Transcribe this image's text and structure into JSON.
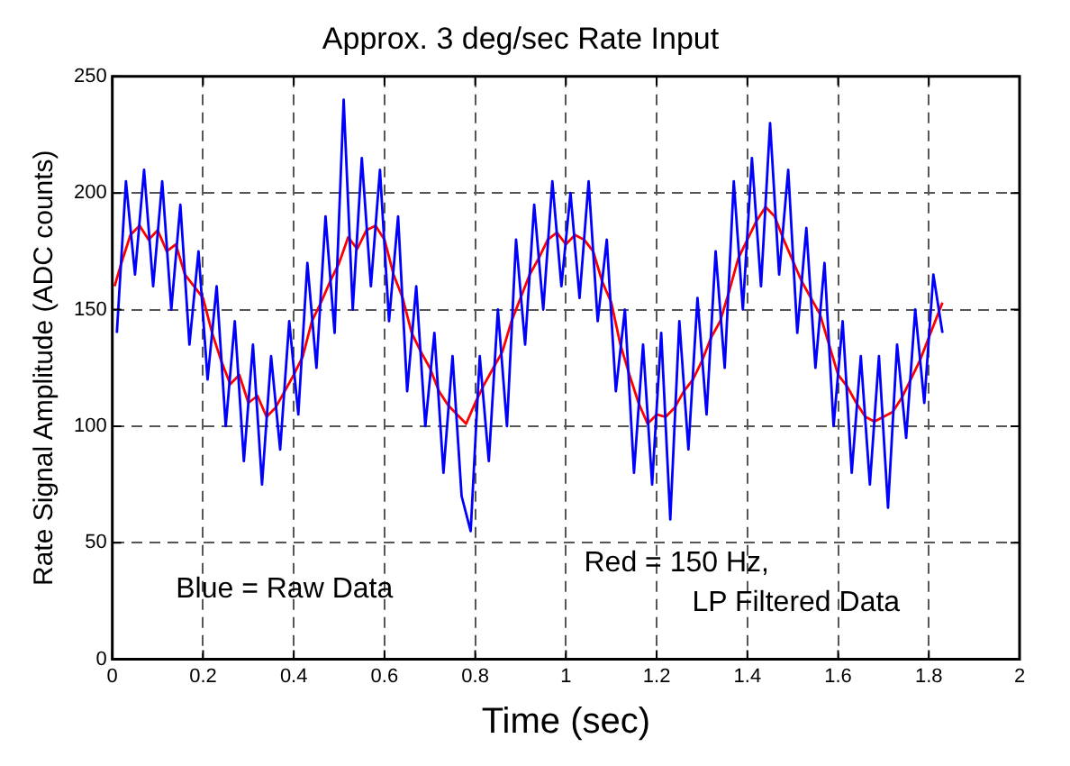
{
  "chart_data": {
    "type": "line",
    "title": "Approx. 3 deg/sec Rate Input",
    "xlabel": "Time (sec)",
    "ylabel": "Rate Signal Amplitude (ADC counts)",
    "xlim": [
      0,
      2
    ],
    "xticks": [
      0,
      0.2,
      0.4,
      0.6,
      0.8,
      1,
      1.2,
      1.4,
      1.6,
      1.8,
      2
    ],
    "ylim": [
      0,
      250
    ],
    "yticks": [
      0,
      50,
      100,
      150,
      200,
      250
    ],
    "grid": true,
    "legend": false,
    "marker": "none",
    "line_style": "solid",
    "annotations": [
      "Blue = Raw Data",
      "Red = 150 Hz,\n LP Filtered Data"
    ],
    "series": [
      {
        "color": "#0000ff",
        "x": [
          0.01,
          0.03,
          0.05,
          0.07,
          0.09,
          0.11,
          0.13,
          0.15,
          0.17,
          0.19,
          0.21,
          0.23,
          0.25,
          0.27,
          0.29,
          0.31,
          0.33,
          0.35,
          0.37,
          0.39,
          0.41,
          0.43,
          0.45,
          0.47,
          0.49,
          0.51,
          0.53,
          0.55,
          0.57,
          0.59,
          0.61,
          0.63,
          0.65,
          0.67,
          0.69,
          0.71,
          0.73,
          0.75,
          0.77,
          0.79,
          0.81,
          0.83,
          0.85,
          0.87,
          0.89,
          0.91,
          0.93,
          0.95,
          0.97,
          0.99,
          1.01,
          1.03,
          1.05,
          1.07,
          1.09,
          1.11,
          1.13,
          1.15,
          1.17,
          1.19,
          1.21,
          1.23,
          1.25,
          1.27,
          1.29,
          1.31,
          1.33,
          1.35,
          1.37,
          1.39,
          1.41,
          1.43,
          1.45,
          1.47,
          1.49,
          1.51,
          1.53,
          1.55,
          1.57,
          1.59,
          1.61,
          1.63,
          1.65,
          1.67,
          1.69,
          1.71,
          1.73,
          1.75,
          1.77,
          1.79,
          1.81,
          1.83
        ],
        "values": [
          140,
          205,
          165,
          210,
          160,
          205,
          150,
          195,
          135,
          175,
          120,
          160,
          100,
          145,
          85,
          135,
          75,
          130,
          90,
          145,
          105,
          170,
          125,
          190,
          140,
          240,
          150,
          215,
          160,
          210,
          145,
          190,
          115,
          160,
          100,
          140,
          80,
          130,
          70,
          55,
          130,
          85,
          150,
          100,
          180,
          135,
          195,
          150,
          205,
          160,
          200,
          155,
          205,
          145,
          180,
          115,
          150,
          80,
          135,
          75,
          140,
          60,
          145,
          90,
          155,
          105,
          175,
          125,
          205,
          150,
          215,
          160,
          230,
          165,
          210,
          140,
          185,
          125,
          170,
          100,
          145,
          80,
          130,
          75,
          130,
          65,
          135,
          95,
          150,
          110,
          165,
          140
        ]
      },
      {
        "color": "#ff0000",
        "x": [
          0.005,
          0.02,
          0.04,
          0.06,
          0.08,
          0.1,
          0.12,
          0.14,
          0.16,
          0.18,
          0.2,
          0.22,
          0.24,
          0.26,
          0.28,
          0.3,
          0.32,
          0.34,
          0.36,
          0.38,
          0.4,
          0.42,
          0.44,
          0.46,
          0.48,
          0.5,
          0.52,
          0.54,
          0.56,
          0.58,
          0.6,
          0.62,
          0.64,
          0.66,
          0.68,
          0.7,
          0.72,
          0.74,
          0.76,
          0.78,
          0.8,
          0.82,
          0.84,
          0.86,
          0.88,
          0.9,
          0.92,
          0.94,
          0.96,
          0.98,
          1,
          1.02,
          1.04,
          1.06,
          1.08,
          1.1,
          1.12,
          1.14,
          1.16,
          1.18,
          1.2,
          1.22,
          1.24,
          1.26,
          1.28,
          1.3,
          1.32,
          1.34,
          1.36,
          1.38,
          1.4,
          1.42,
          1.44,
          1.46,
          1.48,
          1.5,
          1.52,
          1.54,
          1.56,
          1.58,
          1.6,
          1.62,
          1.64,
          1.66,
          1.68,
          1.7,
          1.72,
          1.74,
          1.76,
          1.78,
          1.8,
          1.82,
          1.83
        ],
        "values": [
          160,
          170,
          182,
          186,
          180,
          184,
          175,
          178,
          165,
          160,
          155,
          140,
          128,
          118,
          122,
          110,
          113,
          104,
          108,
          115,
          122,
          130,
          145,
          153,
          162,
          170,
          181,
          176,
          184,
          186,
          180,
          165,
          155,
          140,
          132,
          125,
          115,
          109,
          105,
          101,
          110,
          118,
          125,
          132,
          145,
          155,
          165,
          172,
          180,
          183,
          178,
          182,
          180,
          175,
          162,
          153,
          135,
          122,
          110,
          101,
          105,
          104,
          108,
          115,
          120,
          128,
          138,
          145,
          158,
          172,
          180,
          188,
          194,
          190,
          180,
          171,
          162,
          155,
          148,
          135,
          122,
          117,
          110,
          104,
          102,
          104,
          106,
          112,
          120,
          128,
          138,
          148,
          153
        ]
      }
    ]
  }
}
